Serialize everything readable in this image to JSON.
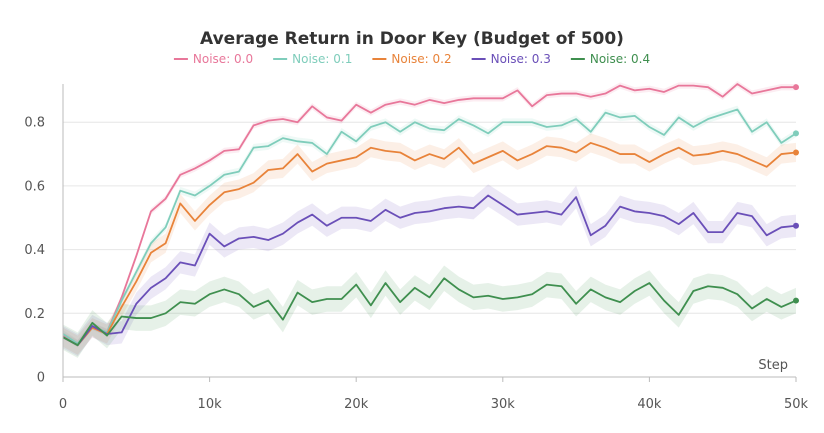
{
  "chart_data": {
    "type": "line",
    "title": "Average Return in Door Key (Budget of 500)",
    "xlabel": "Step",
    "ylabel": "",
    "xlim": [
      0,
      50000
    ],
    "ylim": [
      0,
      0.92
    ],
    "xticks": [
      0,
      10000,
      20000,
      30000,
      40000,
      50000
    ],
    "xtick_labels": [
      "0",
      "10k",
      "20k",
      "30k",
      "40k",
      "50k"
    ],
    "yticks": [
      0,
      0.2,
      0.4,
      0.6,
      0.8
    ],
    "ytick_labels": [
      "0",
      "0.2",
      "0.4",
      "0.6",
      "0.8"
    ],
    "grid": true,
    "legend_position": "top",
    "x": [
      0,
      1000,
      2000,
      3000,
      4000,
      5000,
      6000,
      7000,
      8000,
      9000,
      10000,
      11000,
      12000,
      13000,
      14000,
      15000,
      16000,
      17000,
      18000,
      19000,
      20000,
      21000,
      22000,
      23000,
      24000,
      25000,
      26000,
      27000,
      28000,
      29000,
      30000,
      31000,
      32000,
      33000,
      34000,
      35000,
      36000,
      37000,
      38000,
      39000,
      40000,
      41000,
      42000,
      43000,
      44000,
      45000,
      46000,
      47000,
      48000,
      49000,
      50000
    ],
    "series": [
      {
        "name": "Noise: 0.0",
        "color": "#e8779a",
        "band": 0.01,
        "values": [
          0.13,
          0.105,
          0.16,
          0.14,
          0.25,
          0.38,
          0.52,
          0.56,
          0.635,
          0.655,
          0.68,
          0.71,
          0.715,
          0.79,
          0.805,
          0.81,
          0.8,
          0.85,
          0.815,
          0.805,
          0.855,
          0.83,
          0.855,
          0.865,
          0.855,
          0.87,
          0.86,
          0.87,
          0.875,
          0.875,
          0.875,
          0.9,
          0.85,
          0.885,
          0.89,
          0.89,
          0.88,
          0.89,
          0.915,
          0.9,
          0.905,
          0.895,
          0.915,
          0.915,
          0.91,
          0.88,
          0.92,
          0.89,
          0.9,
          0.91,
          0.91
        ]
      },
      {
        "name": "Noise: 0.1",
        "color": "#7fcdbb",
        "band": 0.012,
        "values": [
          0.135,
          0.105,
          0.16,
          0.14,
          0.24,
          0.33,
          0.42,
          0.47,
          0.585,
          0.57,
          0.6,
          0.635,
          0.645,
          0.72,
          0.725,
          0.75,
          0.74,
          0.735,
          0.7,
          0.77,
          0.74,
          0.785,
          0.8,
          0.77,
          0.8,
          0.78,
          0.775,
          0.81,
          0.79,
          0.765,
          0.8,
          0.8,
          0.8,
          0.785,
          0.79,
          0.81,
          0.77,
          0.83,
          0.815,
          0.82,
          0.785,
          0.76,
          0.815,
          0.785,
          0.81,
          0.825,
          0.84,
          0.77,
          0.8,
          0.735,
          0.765
        ]
      },
      {
        "name": "Noise: 0.2",
        "color": "#e8833a",
        "band": 0.03,
        "values": [
          0.125,
          0.1,
          0.155,
          0.135,
          0.22,
          0.3,
          0.39,
          0.42,
          0.545,
          0.49,
          0.54,
          0.58,
          0.59,
          0.61,
          0.65,
          0.655,
          0.7,
          0.645,
          0.67,
          0.68,
          0.69,
          0.72,
          0.71,
          0.705,
          0.68,
          0.7,
          0.685,
          0.72,
          0.67,
          0.69,
          0.71,
          0.68,
          0.7,
          0.725,
          0.72,
          0.705,
          0.735,
          0.72,
          0.7,
          0.7,
          0.675,
          0.7,
          0.72,
          0.695,
          0.7,
          0.71,
          0.7,
          0.68,
          0.66,
          0.7,
          0.705
        ]
      },
      {
        "name": "Noise: 0.3",
        "color": "#6a4fb8",
        "band": 0.035,
        "values": [
          0.125,
          0.1,
          0.16,
          0.135,
          0.14,
          0.23,
          0.28,
          0.31,
          0.36,
          0.35,
          0.45,
          0.41,
          0.435,
          0.44,
          0.43,
          0.45,
          0.485,
          0.51,
          0.475,
          0.5,
          0.5,
          0.49,
          0.525,
          0.5,
          0.515,
          0.52,
          0.53,
          0.535,
          0.53,
          0.57,
          0.54,
          0.51,
          0.515,
          0.52,
          0.51,
          0.565,
          0.445,
          0.475,
          0.535,
          0.52,
          0.515,
          0.505,
          0.48,
          0.515,
          0.455,
          0.455,
          0.515,
          0.505,
          0.445,
          0.47,
          0.475
        ]
      },
      {
        "name": "Noise: 0.4",
        "color": "#3f8f4f",
        "band": 0.04,
        "values": [
          0.125,
          0.1,
          0.17,
          0.13,
          0.19,
          0.185,
          0.185,
          0.2,
          0.235,
          0.23,
          0.26,
          0.275,
          0.26,
          0.22,
          0.24,
          0.18,
          0.265,
          0.235,
          0.245,
          0.245,
          0.29,
          0.225,
          0.295,
          0.235,
          0.28,
          0.25,
          0.31,
          0.275,
          0.25,
          0.255,
          0.245,
          0.25,
          0.26,
          0.29,
          0.285,
          0.23,
          0.275,
          0.25,
          0.235,
          0.27,
          0.295,
          0.24,
          0.195,
          0.27,
          0.285,
          0.28,
          0.26,
          0.215,
          0.245,
          0.22,
          0.24
        ]
      }
    ]
  }
}
